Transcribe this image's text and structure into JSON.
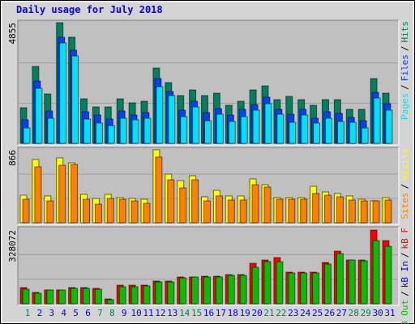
{
  "chart_data": [
    {
      "type": "bar",
      "title": "Daily usage for July 2018",
      "ylim": [
        0,
        4855
      ],
      "yticks": [
        4855
      ],
      "grid": true,
      "legend_separator": "/",
      "series": [
        {
          "name": "Hits",
          "color": "#00805c",
          "values": [
            1434,
            3096,
            1988,
            4855,
            4270,
            1792,
            1466,
            1466,
            1792,
            1630,
            1695,
            3030,
            2444,
            1923,
            2150,
            1923,
            2020,
            1532,
            1695,
            2150,
            2313,
            1760,
            1890,
            1760,
            1532,
            1760,
            1760,
            1369,
            1369,
            2607,
            2020
          ]
        },
        {
          "name": "Files",
          "color": "#0040ff",
          "values": [
            945,
            2509,
            1303,
            4270,
            3747,
            1271,
            1140,
            978,
            1303,
            1140,
            1238,
            2607,
            2085,
            1336,
            1695,
            1238,
            1401,
            1140,
            1369,
            1564,
            1857,
            1369,
            1173,
            1369,
            1010,
            1271,
            1206,
            1043,
            912,
            2053,
            1597
          ]
        },
        {
          "name": "Pages",
          "color": "#00e0ff",
          "values": [
            619,
            2216,
            1010,
            4041,
            3519,
            978,
            815,
            717,
            1010,
            945,
            1010,
            2281,
            1923,
            1075,
            1466,
            912,
            1173,
            880,
            1075,
            1336,
            1597,
            1173,
            847,
            1140,
            815,
            1010,
            880,
            847,
            619,
            1825,
            1336
          ]
        }
      ]
    },
    {
      "type": "bar",
      "ylim": [
        0,
        866
      ],
      "yticks": [
        866
      ],
      "grid": true,
      "legend_separator": "/",
      "series": [
        {
          "name": "Visits",
          "color": "#ffff00",
          "values": [
            327,
            751,
            318,
            770,
            712,
            337,
            289,
            337,
            298,
            289,
            279,
            866,
            578,
            500,
            558,
            308,
            385,
            318,
            318,
            520,
            452,
            298,
            298,
            298,
            433,
            366,
            347,
            318,
            279,
            260,
            298
          ]
        },
        {
          "name": "Sites",
          "color": "#ff8000",
          "values": [
            279,
            664,
            260,
            683,
            693,
            279,
            221,
            289,
            279,
            260,
            231,
            780,
            510,
            414,
            510,
            260,
            318,
            270,
            270,
            452,
            424,
            279,
            279,
            279,
            347,
            327,
            308,
            270,
            260,
            260,
            270
          ]
        }
      ]
    },
    {
      "type": "bar",
      "categories": [
        "1",
        "2",
        "3",
        "4",
        "5",
        "6",
        "7",
        "8",
        "9",
        "10",
        "11",
        "12",
        "13",
        "14",
        "15",
        "16",
        "17",
        "18",
        "19",
        "20",
        "21",
        "22",
        "23",
        "24",
        "25",
        "26",
        "27",
        "28",
        "29",
        "30",
        "31"
      ],
      "category_colors": [
        "#00805c",
        "#0000ff",
        "#0000ff",
        "#0000ff",
        "#0000ff",
        "#0000ff",
        "#00805c",
        "#00805c",
        "#0000ff",
        "#0000ff",
        "#0000ff",
        "#0000ff",
        "#0000ff",
        "#00805c",
        "#00805c",
        "#0000ff",
        "#0000ff",
        "#0000ff",
        "#0000ff",
        "#0000ff",
        "#00805c",
        "#00805c",
        "#0000ff",
        "#0000ff",
        "#0000ff",
        "#0000ff",
        "#0000ff",
        "#00805c",
        "#00805c",
        "#0000ff",
        "#0000ff"
      ],
      "ylim": [
        0,
        328072
      ],
      "yticks": [
        328072
      ],
      "grid": true,
      "legend_separator": "/",
      "series": [
        {
          "name": "kB F",
          "color": "#ff0000",
          "values": [
            72100,
            50470,
            61285,
            61285,
            72100,
            72100,
            68495,
            21630,
            82915,
            82915,
            82915,
            100940,
            100940,
            118965,
            118965,
            122570,
            122570,
            129780,
            129780,
            180250,
            194670,
            205485,
            140595,
            140595,
            140595,
            183855,
            234325,
            194670,
            194670,
            328072,
            281190
          ]
        },
        {
          "name": "kB In",
          "color": "#0000ff",
          "values": [
            null,
            null,
            null,
            null,
            null,
            null,
            null,
            null,
            null,
            null,
            null,
            null,
            null,
            null,
            null,
            null,
            null,
            null,
            null,
            null,
            null,
            null,
            null,
            null,
            null,
            null,
            null,
            null,
            null,
            null,
            null
          ]
        },
        {
          "name": "kB Out",
          "color": "#00c000",
          "values": [
            64890,
            46865,
            61285,
            61285,
            68495,
            68495,
            64890,
            18025,
            75705,
            75705,
            79310,
            97335,
            97335,
            115360,
            118965,
            118965,
            118965,
            126175,
            126175,
            162225,
            187460,
            187460,
            136990,
            136990,
            136990,
            176645,
            223510,
            194670,
            191065,
            281190,
            255955
          ]
        }
      ]
    }
  ]
}
